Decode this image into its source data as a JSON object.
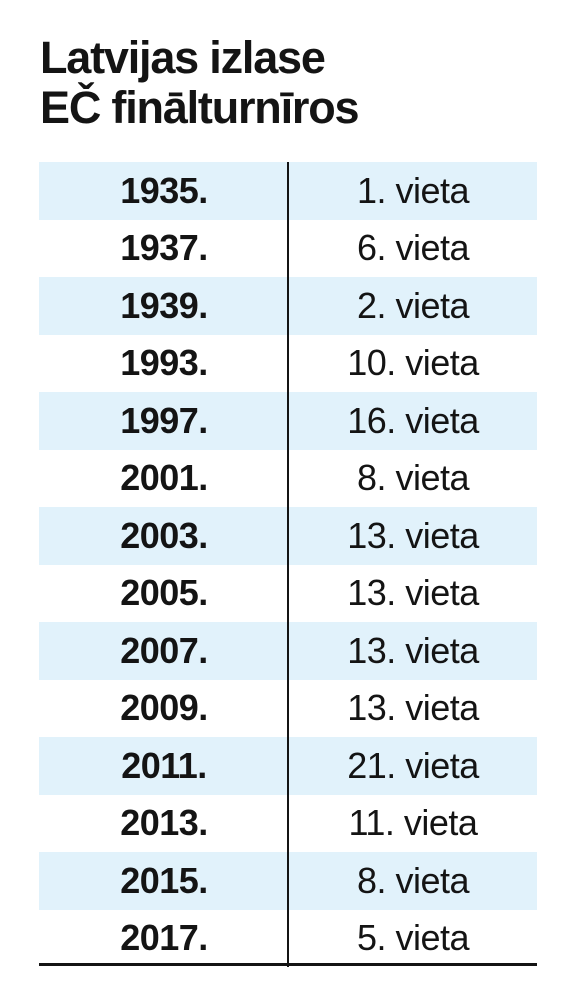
{
  "title_lines": [
    "Latvijas izlase",
    "EČ finālturnīros"
  ],
  "colors": {
    "text": "#141414",
    "row_shade": "#e1f2fb",
    "rule": "#141414"
  },
  "chart_data": {
    "type": "table",
    "title": "Latvijas izlase EČ finālturnīros",
    "columns": [
      "",
      ""
    ],
    "rows": [
      {
        "year": "1935.",
        "place": "1. vieta"
      },
      {
        "year": "1937.",
        "place": "6. vieta"
      },
      {
        "year": "1939.",
        "place": "2. vieta"
      },
      {
        "year": "1993.",
        "place": "10. vieta"
      },
      {
        "year": "1997.",
        "place": "16. vieta"
      },
      {
        "year": "2001.",
        "place": "8. vieta"
      },
      {
        "year": "2003.",
        "place": "13. vieta"
      },
      {
        "year": "2005.",
        "place": "13. vieta"
      },
      {
        "year": "2007.",
        "place": "13. vieta"
      },
      {
        "year": "2009.",
        "place": "13. vieta"
      },
      {
        "year": "2011.",
        "place": "21. vieta"
      },
      {
        "year": "2013.",
        "place": "11. vieta"
      },
      {
        "year": "2015.",
        "place": "8. vieta"
      },
      {
        "year": "2017.",
        "place": "5. vieta"
      }
    ]
  }
}
